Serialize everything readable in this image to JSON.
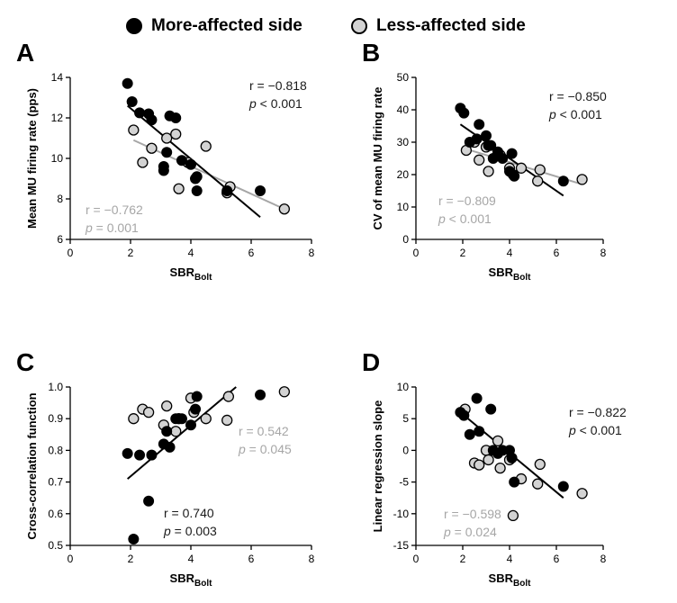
{
  "legend": {
    "more_label": "More-affected side",
    "less_label": "Less-affected side"
  },
  "colors": {
    "more": "#000000",
    "less": "#d3d3d3",
    "less_text": "#a6a6a6",
    "line_more": "#000000",
    "line_less": "#a6a6a6"
  },
  "x_axis_common": {
    "label_main": "SBR",
    "label_sub": "Bolt",
    "ticks": [
      "0",
      "2",
      "4",
      "6",
      "8"
    ]
  },
  "chart_data": [
    {
      "panel": "A",
      "type": "scatter",
      "ylabel": "Mean MU firing rate (pps)",
      "xlim": [
        0,
        8
      ],
      "ylim": [
        6,
        14
      ],
      "yticks": [
        6,
        8,
        10,
        12,
        14
      ],
      "ytick_labels": [
        "6",
        "8",
        "10",
        "12",
        "14"
      ],
      "more": {
        "points": [
          [
            1.9,
            13.7
          ],
          [
            2.05,
            12.8
          ],
          [
            2.3,
            12.25
          ],
          [
            2.6,
            12.2
          ],
          [
            2.7,
            11.9
          ],
          [
            3.1,
            9.4
          ],
          [
            3.1,
            9.6
          ],
          [
            3.2,
            10.3
          ],
          [
            3.3,
            12.1
          ],
          [
            3.5,
            12.0
          ],
          [
            3.7,
            9.9
          ],
          [
            4.0,
            9.7
          ],
          [
            4.15,
            9.0
          ],
          [
            4.2,
            8.4
          ],
          [
            4.2,
            9.1
          ],
          [
            5.2,
            8.4
          ],
          [
            6.3,
            8.4
          ]
        ],
        "line": [
          [
            1.9,
            12.6
          ],
          [
            6.3,
            7.1
          ]
        ],
        "r_label": "r = −0.818",
        "p_label": "< 0.001"
      },
      "less": {
        "points": [
          [
            2.1,
            11.4
          ],
          [
            2.4,
            9.8
          ],
          [
            2.7,
            10.5
          ],
          [
            3.2,
            11.0
          ],
          [
            3.5,
            11.2
          ],
          [
            3.6,
            8.5
          ],
          [
            3.9,
            9.8
          ],
          [
            4.5,
            10.6
          ],
          [
            5.2,
            8.3
          ],
          [
            5.3,
            8.6
          ],
          [
            7.1,
            7.5
          ]
        ],
        "line": [
          [
            2.1,
            10.9
          ],
          [
            7.1,
            7.5
          ]
        ],
        "r_label": "r = −0.762",
        "p_label": "= 0.001"
      }
    },
    {
      "panel": "B",
      "type": "scatter",
      "ylabel": "CV of mean MU firing rate",
      "xlim": [
        0,
        8
      ],
      "ylim": [
        0,
        50
      ],
      "yticks": [
        0,
        10,
        20,
        30,
        40,
        50
      ],
      "ytick_labels": [
        "0",
        "10",
        "20",
        "30",
        "40",
        "50"
      ],
      "more": {
        "points": [
          [
            1.9,
            40.5
          ],
          [
            2.05,
            39.0
          ],
          [
            2.3,
            30.0
          ],
          [
            2.6,
            31.0
          ],
          [
            2.7,
            35.5
          ],
          [
            3.0,
            32.0
          ],
          [
            3.1,
            29.0
          ],
          [
            3.2,
            29.0
          ],
          [
            3.3,
            25.0
          ],
          [
            3.5,
            27.0
          ],
          [
            3.7,
            25.0
          ],
          [
            4.0,
            21.0
          ],
          [
            4.1,
            26.5
          ],
          [
            4.15,
            20.0
          ],
          [
            4.2,
            19.5
          ],
          [
            6.3,
            18.0
          ]
        ],
        "line": [
          [
            1.9,
            35.5
          ],
          [
            6.3,
            13.5
          ]
        ],
        "r_label": "r  = −0.850",
        "p_label": "< 0.001"
      },
      "less": {
        "points": [
          [
            2.15,
            27.5
          ],
          [
            2.5,
            30.0
          ],
          [
            2.7,
            24.5
          ],
          [
            3.0,
            28.5
          ],
          [
            3.1,
            21.0
          ],
          [
            3.6,
            26.0
          ],
          [
            4.0,
            22.0
          ],
          [
            4.5,
            22.0
          ],
          [
            5.2,
            18.0
          ],
          [
            5.3,
            21.5
          ],
          [
            7.1,
            18.5
          ]
        ],
        "line": [
          [
            2.1,
            28.0
          ],
          [
            7.1,
            17.0
          ]
        ],
        "r_label": "r  = −0.809",
        "p_label": "< 0.001"
      }
    },
    {
      "panel": "C",
      "type": "scatter",
      "ylabel": "Cross-correlation function",
      "xlim": [
        0,
        8
      ],
      "ylim": [
        0.5,
        1.0
      ],
      "yticks": [
        0.5,
        0.6,
        0.7,
        0.8,
        0.9,
        1.0
      ],
      "ytick_labels": [
        "0.5",
        "0.6",
        "0.7",
        "0.8",
        "0.9",
        "1.0"
      ],
      "more": {
        "points": [
          [
            1.9,
            0.79
          ],
          [
            2.1,
            0.52
          ],
          [
            2.3,
            0.785
          ],
          [
            2.6,
            0.64
          ],
          [
            2.7,
            0.785
          ],
          [
            3.1,
            0.82
          ],
          [
            3.2,
            0.86
          ],
          [
            3.3,
            0.81
          ],
          [
            3.5,
            0.9
          ],
          [
            3.7,
            0.9
          ],
          [
            4.0,
            0.88
          ],
          [
            4.15,
            0.93
          ],
          [
            4.2,
            0.97
          ],
          [
            6.3,
            0.975
          ]
        ],
        "line": [
          [
            1.9,
            0.71
          ],
          [
            5.5,
            1.0
          ]
        ],
        "r_label": "r = 0.740",
        "p_label": "p = 0.003"
      },
      "less": {
        "points": [
          [
            2.1,
            0.9
          ],
          [
            2.4,
            0.93
          ],
          [
            2.6,
            0.92
          ],
          [
            3.1,
            0.88
          ],
          [
            3.2,
            0.94
          ],
          [
            3.5,
            0.86
          ],
          [
            3.6,
            0.9
          ],
          [
            4.0,
            0.965
          ],
          [
            4.1,
            0.92
          ],
          [
            4.5,
            0.9
          ],
          [
            5.2,
            0.895
          ],
          [
            5.25,
            0.97
          ],
          [
            7.1,
            0.985
          ]
        ],
        "r_label": "r = 0.542",
        "p_label": "p = 0.045"
      }
    },
    {
      "panel": "D",
      "type": "scatter",
      "ylabel": "Linear regression slope",
      "xlim": [
        0,
        8
      ],
      "ylim": [
        -15,
        10
      ],
      "yticks": [
        -15,
        -10,
        -5,
        0,
        5,
        10
      ],
      "ytick_labels": [
        "-15",
        "-10",
        "-5",
        "0",
        "5",
        "10"
      ],
      "more": {
        "points": [
          [
            1.9,
            6.0
          ],
          [
            2.05,
            5.5
          ],
          [
            2.3,
            2.5
          ],
          [
            2.6,
            8.2
          ],
          [
            2.7,
            3.0
          ],
          [
            3.2,
            6.5
          ],
          [
            3.3,
            0.0
          ],
          [
            3.5,
            -0.5
          ],
          [
            3.7,
            0.0
          ],
          [
            4.0,
            0.0
          ],
          [
            4.1,
            -1.2
          ],
          [
            4.2,
            -5.0
          ],
          [
            6.3,
            -5.7
          ]
        ],
        "line": [
          [
            1.9,
            6.0
          ],
          [
            6.3,
            -7.5
          ]
        ],
        "r_label": "r  = −0.822",
        "p_label": "< 0.001"
      },
      "less": {
        "points": [
          [
            2.1,
            6.5
          ],
          [
            2.5,
            -2.0
          ],
          [
            2.7,
            -2.3
          ],
          [
            3.0,
            0.0
          ],
          [
            3.1,
            -1.5
          ],
          [
            3.5,
            1.5
          ],
          [
            3.6,
            -2.8
          ],
          [
            4.0,
            -1.5
          ],
          [
            4.15,
            -10.3
          ],
          [
            4.5,
            -4.5
          ],
          [
            5.2,
            -5.3
          ],
          [
            5.3,
            -2.2
          ],
          [
            7.1,
            -6.8
          ]
        ],
        "r_label": "r  = −0.598",
        "p_label": "p = 0.024"
      }
    }
  ]
}
